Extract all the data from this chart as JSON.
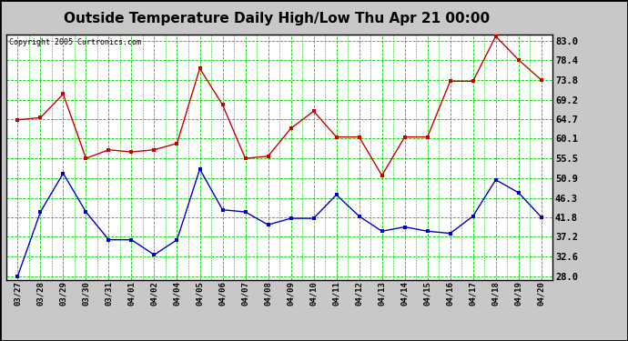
{
  "title": "Outside Temperature Daily High/Low Thu Apr 21 00:00",
  "copyright": "Copyright 2005 Curtronics.com",
  "x_labels": [
    "03/27",
    "03/28",
    "03/29",
    "03/30",
    "03/31",
    "04/01",
    "04/02",
    "04/04",
    "04/05",
    "04/06",
    "04/07",
    "04/08",
    "04/09",
    "04/10",
    "04/11",
    "04/12",
    "04/13",
    "04/14",
    "04/15",
    "04/16",
    "04/17",
    "04/18",
    "04/19",
    "04/20"
  ],
  "high_temps": [
    64.5,
    65.0,
    70.5,
    55.5,
    57.5,
    57.0,
    57.5,
    59.0,
    76.5,
    68.0,
    55.5,
    56.0,
    62.5,
    66.5,
    60.5,
    60.5,
    51.5,
    60.5,
    60.5,
    73.5,
    73.5,
    84.0,
    78.5,
    73.8
  ],
  "low_temps": [
    28.0,
    43.0,
    52.0,
    43.0,
    36.5,
    36.5,
    33.0,
    36.5,
    53.0,
    43.5,
    43.0,
    40.0,
    41.5,
    41.5,
    47.0,
    42.0,
    38.5,
    39.5,
    38.5,
    38.0,
    42.0,
    50.5,
    47.5,
    41.8
  ],
  "high_color": "#cc0000",
  "low_color": "#0000cc",
  "bg_color": "#c8c8c8",
  "plot_bg_color": "#ffffff",
  "grid_color": "#00cc00",
  "title_fontsize": 11,
  "yticks": [
    28.0,
    32.6,
    37.2,
    41.8,
    46.3,
    50.9,
    55.5,
    60.1,
    64.7,
    69.2,
    73.8,
    78.4,
    83.0
  ],
  "ylim": [
    27.2,
    84.5
  ],
  "xlim": [
    -0.5,
    23.5
  ]
}
